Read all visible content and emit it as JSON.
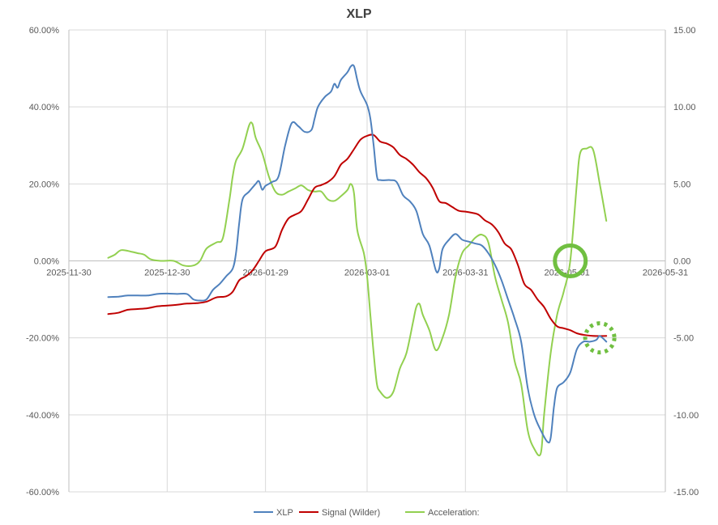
{
  "chart_data": {
    "type": "line",
    "title": "XLP",
    "x_ticks": [
      "2025-11-30",
      "2025-12-30",
      "2026-01-29",
      "2026-03-01",
      "2026-03-31",
      "2026-05-01",
      "2026-05-31"
    ],
    "y_left_ticks": [
      "60.00%",
      "40.00%",
      "20.00%",
      "0.00%",
      "-20.00%",
      "-40.00%",
      "-60.00%"
    ],
    "y_right_ticks": [
      "15.00",
      "10.00",
      "5.00",
      "0.00",
      "-5.00",
      "-10.00",
      "-15.00"
    ],
    "ylim_left": [
      -60,
      60
    ],
    "ylim_right": [
      -15,
      15
    ],
    "xlim": [
      "2025-11-30",
      "2026-05-31"
    ],
    "grid": true,
    "legend_position": "bottom",
    "series": [
      {
        "name": "XLP",
        "axis": "left",
        "color": "#4f81bd",
        "points": [
          [
            "2025-12-12",
            -9.4
          ],
          [
            "2025-12-15",
            -9.3
          ],
          [
            "2025-12-18",
            -9.0
          ],
          [
            "2025-12-21",
            -9.0
          ],
          [
            "2025-12-24",
            -9.0
          ],
          [
            "2025-12-27",
            -8.6
          ],
          [
            "2025-12-30",
            -8.5
          ],
          [
            "2026-01-02",
            -8.6
          ],
          [
            "2026-01-05",
            -8.6
          ],
          [
            "2026-01-07",
            -10.0
          ],
          [
            "2026-01-09",
            -10.3
          ],
          [
            "2026-01-11",
            -10.0
          ],
          [
            "2026-01-13",
            -7.5
          ],
          [
            "2026-01-15",
            -6.0
          ],
          [
            "2026-01-17",
            -4.0
          ],
          [
            "2026-01-19",
            -2.0
          ],
          [
            "2026-01-20",
            2.0
          ],
          [
            "2026-01-21",
            10.0
          ],
          [
            "2026-01-22",
            16.0
          ],
          [
            "2026-01-24",
            18.0
          ],
          [
            "2026-01-26",
            20.0
          ],
          [
            "2026-01-27",
            20.7
          ],
          [
            "2026-01-28",
            18.5
          ],
          [
            "2026-01-29",
            19.5
          ],
          [
            "2026-01-31",
            20.5
          ],
          [
            "2026-02-02",
            22.0
          ],
          [
            "2026-02-04",
            30.0
          ],
          [
            "2026-02-06",
            35.8
          ],
          [
            "2026-02-08",
            35.0
          ],
          [
            "2026-02-10",
            33.5
          ],
          [
            "2026-02-12",
            34.0
          ],
          [
            "2026-02-13",
            37.0
          ],
          [
            "2026-02-14",
            40.0
          ],
          [
            "2026-02-16",
            42.5
          ],
          [
            "2026-02-18",
            44.0
          ],
          [
            "2026-02-19",
            46.0
          ],
          [
            "2026-02-20",
            45.0
          ],
          [
            "2026-02-21",
            47.0
          ],
          [
            "2026-02-23",
            49.0
          ],
          [
            "2026-02-24",
            50.5
          ],
          [
            "2026-02-25",
            50.6
          ],
          [
            "2026-02-26",
            47.0
          ],
          [
            "2026-02-27",
            44.0
          ],
          [
            "2026-03-01",
            40.5
          ],
          [
            "2026-03-02",
            37.0
          ],
          [
            "2026-03-03",
            30.0
          ],
          [
            "2026-03-04",
            22.0
          ],
          [
            "2026-03-05",
            21.0
          ],
          [
            "2026-03-08",
            21.0
          ],
          [
            "2026-03-10",
            20.5
          ],
          [
            "2026-03-12",
            17.0
          ],
          [
            "2026-03-14",
            15.5
          ],
          [
            "2026-03-16",
            13.0
          ],
          [
            "2026-03-18",
            7.0
          ],
          [
            "2026-03-20",
            4.0
          ],
          [
            "2026-03-22",
            -2.5
          ],
          [
            "2026-03-23",
            -2.0
          ],
          [
            "2026-03-24",
            3.0
          ],
          [
            "2026-03-26",
            5.5
          ],
          [
            "2026-03-28",
            7.0
          ],
          [
            "2026-03-30",
            5.5
          ],
          [
            "2026-04-01",
            5.0
          ],
          [
            "2026-04-03",
            4.5
          ],
          [
            "2026-04-05",
            4.0
          ],
          [
            "2026-04-07",
            2.0
          ],
          [
            "2026-04-09",
            -1.0
          ],
          [
            "2026-04-11",
            -5.0
          ],
          [
            "2026-04-13",
            -10.0
          ],
          [
            "2026-04-15",
            -15.0
          ],
          [
            "2026-04-17",
            -21.0
          ],
          [
            "2026-04-19",
            -33.0
          ],
          [
            "2026-04-21",
            -40.0
          ],
          [
            "2026-04-23",
            -44.0
          ],
          [
            "2026-04-25",
            -47.0
          ],
          [
            "2026-04-26",
            -46.0
          ],
          [
            "2026-04-27",
            -38.0
          ],
          [
            "2026-04-28",
            -33.0
          ],
          [
            "2026-04-30",
            -31.5
          ],
          [
            "2026-05-02",
            -29.0
          ],
          [
            "2026-05-04",
            -23.0
          ],
          [
            "2026-05-06",
            -21.0
          ],
          [
            "2026-05-08",
            -21.0
          ],
          [
            "2026-05-10",
            -20.5
          ],
          [
            "2026-05-11",
            -19.5
          ],
          [
            "2026-05-13",
            -21.0
          ]
        ]
      },
      {
        "name": "Signal (Wilder)",
        "axis": "left",
        "color": "#c00000",
        "points": [
          [
            "2025-12-12",
            -13.8
          ],
          [
            "2025-12-15",
            -13.5
          ],
          [
            "2025-12-18",
            -12.7
          ],
          [
            "2025-12-21",
            -12.5
          ],
          [
            "2025-12-24",
            -12.3
          ],
          [
            "2025-12-27",
            -11.8
          ],
          [
            "2025-12-30",
            -11.6
          ],
          [
            "2026-01-02",
            -11.4
          ],
          [
            "2026-01-05",
            -11.1
          ],
          [
            "2026-01-08",
            -11.0
          ],
          [
            "2026-01-11",
            -10.6
          ],
          [
            "2026-01-14",
            -9.5
          ],
          [
            "2026-01-17",
            -9.2
          ],
          [
            "2026-01-19",
            -8.0
          ],
          [
            "2026-01-21",
            -5.0
          ],
          [
            "2026-01-23",
            -4.0
          ],
          [
            "2026-01-25",
            -2.5
          ],
          [
            "2026-01-27",
            0.0
          ],
          [
            "2026-01-29",
            2.5
          ],
          [
            "2026-02-01",
            3.7
          ],
          [
            "2026-02-03",
            8.0
          ],
          [
            "2026-02-05",
            11.0
          ],
          [
            "2026-02-07",
            12.0
          ],
          [
            "2026-02-09",
            13.0
          ],
          [
            "2026-02-11",
            16.0
          ],
          [
            "2026-02-13",
            19.0
          ],
          [
            "2026-02-15",
            19.7
          ],
          [
            "2026-02-17",
            20.5
          ],
          [
            "2026-02-19",
            22.0
          ],
          [
            "2026-02-21",
            25.0
          ],
          [
            "2026-02-23",
            26.5
          ],
          [
            "2026-02-25",
            29.0
          ],
          [
            "2026-02-27",
            31.5
          ],
          [
            "2026-03-01",
            32.5
          ],
          [
            "2026-03-03",
            32.7
          ],
          [
            "2026-03-05",
            31.0
          ],
          [
            "2026-03-07",
            30.5
          ],
          [
            "2026-03-09",
            29.5
          ],
          [
            "2026-03-11",
            27.5
          ],
          [
            "2026-03-13",
            26.5
          ],
          [
            "2026-03-15",
            25.0
          ],
          [
            "2026-03-17",
            23.0
          ],
          [
            "2026-03-19",
            21.5
          ],
          [
            "2026-03-21",
            19.0
          ],
          [
            "2026-03-23",
            15.5
          ],
          [
            "2026-03-25",
            15.0
          ],
          [
            "2026-03-27",
            14.0
          ],
          [
            "2026-03-29",
            13.0
          ],
          [
            "2026-03-31",
            12.8
          ],
          [
            "2026-04-02",
            12.5
          ],
          [
            "2026-04-04",
            12.0
          ],
          [
            "2026-04-06",
            10.5
          ],
          [
            "2026-04-08",
            9.5
          ],
          [
            "2026-04-10",
            7.5
          ],
          [
            "2026-04-12",
            4.5
          ],
          [
            "2026-04-14",
            3.0
          ],
          [
            "2026-04-16",
            -1.0
          ],
          [
            "2026-04-18",
            -6.0
          ],
          [
            "2026-04-20",
            -7.5
          ],
          [
            "2026-04-22",
            -10.0
          ],
          [
            "2026-04-24",
            -12.0
          ],
          [
            "2026-04-26",
            -15.0
          ],
          [
            "2026-04-28",
            -17.0
          ],
          [
            "2026-04-30",
            -17.5
          ],
          [
            "2026-05-02",
            -18.0
          ],
          [
            "2026-05-04",
            -18.8
          ],
          [
            "2026-05-06",
            -19.2
          ],
          [
            "2026-05-09",
            -19.5
          ],
          [
            "2026-05-13",
            -19.5
          ]
        ]
      },
      {
        "name": "Acceleration:",
        "axis": "right",
        "color": "#92d050",
        "points": [
          [
            "2025-12-12",
            0.2
          ],
          [
            "2025-12-14",
            0.4
          ],
          [
            "2025-12-16",
            0.7
          ],
          [
            "2025-12-19",
            0.6
          ],
          [
            "2025-12-21",
            0.5
          ],
          [
            "2025-12-23",
            0.4
          ],
          [
            "2025-12-25",
            0.1
          ],
          [
            "2025-12-28",
            0.0
          ],
          [
            "2026-01-01",
            0.0
          ],
          [
            "2026-01-04",
            -0.3
          ],
          [
            "2026-01-07",
            -0.3
          ],
          [
            "2026-01-09",
            0.0
          ],
          [
            "2026-01-11",
            0.8
          ],
          [
            "2026-01-14",
            1.2
          ],
          [
            "2026-01-16",
            1.5
          ],
          [
            "2026-01-18",
            4.0
          ],
          [
            "2026-01-19",
            5.5
          ],
          [
            "2026-01-20",
            6.5
          ],
          [
            "2026-01-22",
            7.3
          ],
          [
            "2026-01-24",
            8.8
          ],
          [
            "2026-01-25",
            8.9
          ],
          [
            "2026-01-26",
            8.0
          ],
          [
            "2026-01-28",
            7.0
          ],
          [
            "2026-01-30",
            5.5
          ],
          [
            "2026-02-01",
            4.5
          ],
          [
            "2026-02-03",
            4.3
          ],
          [
            "2026-02-05",
            4.5
          ],
          [
            "2026-02-07",
            4.7
          ],
          [
            "2026-02-09",
            4.9
          ],
          [
            "2026-02-11",
            4.6
          ],
          [
            "2026-02-13",
            4.5
          ],
          [
            "2026-02-15",
            4.5
          ],
          [
            "2026-02-17",
            4.0
          ],
          [
            "2026-02-19",
            3.9
          ],
          [
            "2026-02-21",
            4.2
          ],
          [
            "2026-02-23",
            4.6
          ],
          [
            "2026-02-24",
            5.0
          ],
          [
            "2026-02-25",
            4.4
          ],
          [
            "2026-02-26",
            2.0
          ],
          [
            "2026-02-28",
            0.5
          ],
          [
            "2026-03-01",
            -1.0
          ],
          [
            "2026-03-02",
            -3.5
          ],
          [
            "2026-03-03",
            -6.0
          ],
          [
            "2026-03-04",
            -8.0
          ],
          [
            "2026-03-05",
            -8.5
          ],
          [
            "2026-03-07",
            -8.9
          ],
          [
            "2026-03-09",
            -8.5
          ],
          [
            "2026-03-11",
            -7.0
          ],
          [
            "2026-03-13",
            -6.0
          ],
          [
            "2026-03-15",
            -4.0
          ],
          [
            "2026-03-16",
            -3.0
          ],
          [
            "2026-03-17",
            -2.8
          ],
          [
            "2026-03-18",
            -3.5
          ],
          [
            "2026-03-20",
            -4.5
          ],
          [
            "2026-03-22",
            -5.8
          ],
          [
            "2026-03-24",
            -5.0
          ],
          [
            "2026-03-26",
            -3.5
          ],
          [
            "2026-03-28",
            -1.0
          ],
          [
            "2026-03-30",
            0.5
          ],
          [
            "2026-04-01",
            1.0
          ],
          [
            "2026-04-03",
            1.5
          ],
          [
            "2026-04-05",
            1.7
          ],
          [
            "2026-04-07",
            1.2
          ],
          [
            "2026-04-09",
            -1.0
          ],
          [
            "2026-04-11",
            -2.5
          ],
          [
            "2026-04-13",
            -4.0
          ],
          [
            "2026-04-15",
            -6.5
          ],
          [
            "2026-04-17",
            -8.0
          ],
          [
            "2026-04-19",
            -11.0
          ],
          [
            "2026-04-21",
            -12.2
          ],
          [
            "2026-04-23",
            -12.5
          ],
          [
            "2026-04-24",
            -10.0
          ],
          [
            "2026-04-26",
            -6.0
          ],
          [
            "2026-04-28",
            -3.5
          ],
          [
            "2026-04-30",
            -2.0
          ],
          [
            "2026-05-02",
            0.0
          ],
          [
            "2026-05-04",
            5.0
          ],
          [
            "2026-05-05",
            7.0
          ],
          [
            "2026-05-07",
            7.3
          ],
          [
            "2026-05-09",
            7.2
          ],
          [
            "2026-05-11",
            5.0
          ],
          [
            "2026-05-13",
            2.6
          ]
        ]
      }
    ],
    "annotations": [
      {
        "shape": "circle",
        "style": "solid",
        "color": "#70bf41",
        "x": "2026-05-02",
        "y_right": 0.0
      },
      {
        "shape": "circle",
        "style": "dotted",
        "color": "#70bf41",
        "x": "2026-05-11",
        "y_right": -5.0
      }
    ]
  }
}
